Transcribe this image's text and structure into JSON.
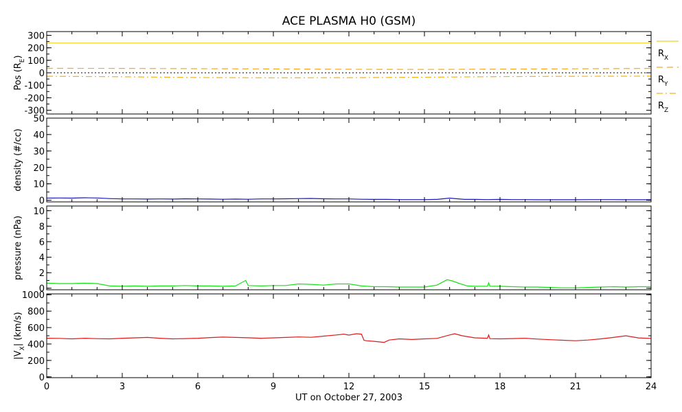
{
  "title": "ACE PLASMA H0 (GSM)",
  "x_axis": {
    "label": "UT on October 27, 2003",
    "ticks": [
      "0",
      "3",
      "6",
      "9",
      "12",
      "15",
      "18",
      "21",
      "24"
    ],
    "range": [
      0,
      24
    ]
  },
  "colors": {
    "rx": "#f2d21f",
    "ry": "#f5a623",
    "rz": "#f0b21a",
    "density": "#1a18b8",
    "pressure": "#18e018",
    "vx": "#e01818"
  },
  "chart_data": [
    {
      "type": "line",
      "ylabel": "Pos (R",
      "ylabel_sub": "E",
      "ylabel_tail": ")",
      "ylim": [
        -330,
        330
      ],
      "yticks": [
        "300",
        "200",
        "100",
        "0",
        "-100",
        "-200",
        "-300"
      ],
      "ytick_values": [
        300,
        200,
        100,
        0,
        -100,
        -200,
        -300
      ],
      "x": [
        0,
        24
      ],
      "series": [
        {
          "name": "R",
          "name_sub": "X",
          "style": "solid",
          "color": "#f2d21f",
          "x": [
            0,
            24
          ],
          "values": [
            238,
            238
          ]
        },
        {
          "name": "R",
          "name_sub": "Y",
          "style": "dashed",
          "color": "#f5a623",
          "x": [
            0,
            3,
            6,
            9,
            12,
            15,
            18,
            21,
            24
          ],
          "values": [
            36,
            35,
            33,
            31,
            28,
            27,
            29,
            32,
            35
          ]
        },
        {
          "name": "R",
          "name_sub": "Z",
          "style": "dashdot",
          "color": "#f0b21a",
          "x": [
            0,
            3,
            6,
            9,
            12,
            15,
            18,
            21,
            24
          ],
          "values": [
            -28,
            -32,
            -38,
            -40,
            -39,
            -36,
            -31,
            -28,
            -27
          ]
        }
      ],
      "zero_line": true
    },
    {
      "type": "line",
      "ylabel": "density (#/cc)",
      "ylim": [
        -1,
        50
      ],
      "yticks": [
        "50",
        "40",
        "30",
        "20",
        "10",
        "0"
      ],
      "ytick_values": [
        50,
        40,
        30,
        20,
        10,
        0
      ],
      "series": [
        {
          "color": "#1a18b8",
          "x": [
            0,
            0.5,
            1,
            1.5,
            2,
            2.5,
            3,
            3.5,
            4,
            4.5,
            5,
            5.5,
            6,
            6.5,
            7,
            7.5,
            8,
            8.5,
            9,
            9.5,
            10,
            10.5,
            11,
            11.5,
            12,
            12.5,
            13,
            13.5,
            14,
            14.5,
            15,
            15.5,
            16,
            16.3,
            16.6,
            17,
            17.5,
            18,
            18.5,
            19,
            19.5,
            20,
            20.5,
            21,
            21.5,
            22,
            22.5,
            23,
            23.5,
            24
          ],
          "values": [
            1.3,
            1.4,
            1.3,
            1.5,
            1.4,
            1.0,
            0.8,
            0.8,
            0.7,
            0.8,
            0.7,
            0.9,
            0.8,
            0.7,
            0.6,
            0.7,
            0.6,
            0.8,
            0.8,
            0.9,
            1.0,
            1.1,
            0.9,
            0.8,
            0.8,
            0.6,
            0.5,
            0.5,
            0.4,
            0.4,
            0.4,
            0.5,
            1.3,
            0.9,
            0.5,
            0.5,
            0.4,
            0.5,
            0.4,
            0.4,
            0.3,
            0.3,
            0.3,
            0.3,
            0.4,
            0.4,
            0.4,
            0.3,
            0.3,
            0.3
          ]
        }
      ]
    },
    {
      "type": "line",
      "ylabel": "pressure (nPa)",
      "ylim": [
        -0.2,
        10.6
      ],
      "yticks": [
        "10",
        "8",
        "6",
        "4",
        "2",
        "0"
      ],
      "ytick_values": [
        10,
        8,
        6,
        4,
        2,
        0
      ],
      "series": [
        {
          "color": "#18e018",
          "x": [
            0,
            0.5,
            1,
            1.5,
            2,
            2.5,
            3,
            3.5,
            4,
            4.5,
            5,
            5.5,
            6,
            6.5,
            7,
            7.5,
            7.9,
            8,
            8.5,
            9,
            9.5,
            10,
            10.5,
            11,
            11.5,
            12,
            12.5,
            13,
            13.5,
            14,
            14.5,
            15,
            15.5,
            15.9,
            16.1,
            16.4,
            16.7,
            17,
            17.5,
            17.55,
            17.6,
            18,
            18.5,
            19,
            19.5,
            20,
            20.5,
            21,
            21.5,
            22,
            22.5,
            23,
            23.5,
            24
          ],
          "values": [
            0.65,
            0.6,
            0.6,
            0.65,
            0.6,
            0.3,
            0.25,
            0.3,
            0.25,
            0.3,
            0.3,
            0.35,
            0.3,
            0.3,
            0.25,
            0.3,
            1.0,
            0.35,
            0.3,
            0.35,
            0.35,
            0.55,
            0.5,
            0.4,
            0.55,
            0.55,
            0.3,
            0.2,
            0.2,
            0.15,
            0.15,
            0.15,
            0.4,
            1.1,
            0.95,
            0.6,
            0.3,
            0.25,
            0.25,
            0.7,
            0.25,
            0.25,
            0.2,
            0.15,
            0.15,
            0.1,
            0.05,
            0.05,
            0.1,
            0.15,
            0.2,
            0.15,
            0.2,
            0.2
          ]
        }
      ]
    },
    {
      "type": "line",
      "ylabel": "|V",
      "ylabel_sub": "X",
      "ylabel_tail": "| (km/s)",
      "ylim": [
        -10,
        1010
      ],
      "yticks": [
        "1000",
        "800",
        "600",
        "400",
        "200",
        "0"
      ],
      "ytick_values": [
        1000,
        800,
        600,
        400,
        200,
        0
      ],
      "series": [
        {
          "color": "#e01818",
          "x": [
            0,
            0.5,
            1,
            1.5,
            2,
            2.5,
            3,
            3.5,
            4,
            4.5,
            5,
            5.5,
            6,
            6.5,
            7,
            7.5,
            8,
            8.5,
            9,
            9.5,
            10,
            10.5,
            11,
            11.5,
            11.8,
            12,
            12.3,
            12.5,
            12.6,
            12.7,
            13,
            13.4,
            13.6,
            14,
            14.5,
            15,
            15.5,
            16,
            16.2,
            16.5,
            17,
            17.5,
            17.55,
            17.6,
            18,
            18.5,
            19,
            19.5,
            20,
            20.5,
            21,
            21.5,
            22,
            22.5,
            23,
            23.5,
            24
          ],
          "values": [
            470,
            468,
            462,
            470,
            465,
            462,
            470,
            475,
            480,
            470,
            462,
            466,
            470,
            478,
            484,
            480,
            476,
            470,
            475,
            480,
            486,
            482,
            496,
            510,
            520,
            508,
            525,
            520,
            445,
            440,
            432,
            420,
            448,
            462,
            455,
            462,
            468,
            510,
            525,
            500,
            475,
            470,
            510,
            465,
            462,
            466,
            470,
            460,
            452,
            446,
            440,
            448,
            462,
            480,
            500,
            474,
            468
          ]
        }
      ]
    }
  ]
}
